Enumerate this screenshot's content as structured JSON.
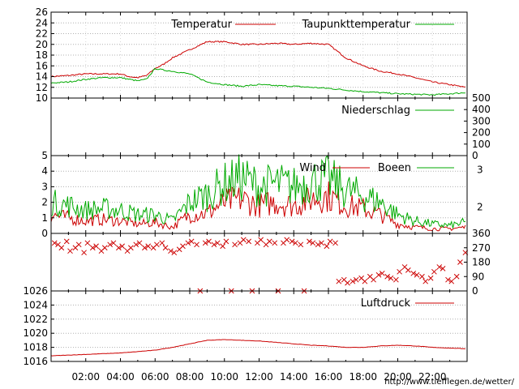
{
  "chart_data": [
    {
      "type": "line",
      "ylim": [
        10,
        26
      ],
      "yticks": [
        10,
        12,
        14,
        16,
        18,
        20,
        22,
        24,
        26
      ],
      "grid": true,
      "series": [
        {
          "name": "Temperatur",
          "color": "#cc0000",
          "x": [
            0,
            1,
            2,
            3,
            4,
            4.5,
            5,
            5.5,
            6,
            6.5,
            7,
            8,
            9,
            10,
            11,
            12,
            13,
            14,
            15,
            16,
            17,
            18,
            19,
            20,
            21,
            22,
            23,
            23.9
          ],
          "values": [
            14.0,
            14.2,
            14.5,
            14.5,
            14.5,
            14.0,
            13.8,
            14.2,
            15.5,
            16.3,
            17.5,
            19.0,
            20.5,
            20.5,
            20.0,
            20.0,
            20.2,
            20.0,
            20.2,
            20.0,
            17.5,
            16.0,
            15.0,
            14.5,
            13.8,
            13.0,
            12.5,
            12.0
          ]
        },
        {
          "name": "Taupunkttemperatur",
          "color": "#00aa00",
          "x": [
            0,
            1,
            2,
            3,
            4,
            4.5,
            5,
            5.5,
            6,
            6.5,
            7,
            8,
            9,
            10,
            11,
            12,
            13,
            14,
            15,
            16,
            17,
            18,
            19,
            20,
            21,
            22,
            23,
            23.9
          ],
          "values": [
            12.8,
            13.0,
            13.5,
            13.8,
            13.8,
            13.5,
            13.2,
            13.5,
            15.5,
            15.2,
            15.0,
            14.5,
            13.0,
            12.5,
            12.2,
            12.5,
            12.3,
            12.2,
            12.0,
            11.8,
            11.5,
            11.2,
            11.0,
            10.8,
            10.7,
            10.6,
            10.8,
            11.0
          ]
        }
      ]
    },
    {
      "type": "line",
      "ylim": [
        0,
        500
      ],
      "yticks": [
        0,
        100,
        200,
        300,
        400,
        500
      ],
      "series": [
        {
          "name": "Niederschlag",
          "color": "#00aa00",
          "x": [
            0,
            24
          ],
          "values": [
            0,
            0
          ]
        }
      ]
    },
    {
      "type": "line",
      "ylim": [
        0,
        5
      ],
      "yticks": [
        0,
        1,
        2,
        3,
        4,
        5
      ],
      "right_ticks": [
        "2",
        "3"
      ],
      "grid": true,
      "series": [
        {
          "name": "Wind",
          "color": "#cc0000",
          "x": [
            0,
            1,
            2,
            3,
            4,
            5,
            6,
            7,
            8,
            9,
            10,
            11,
            12,
            13,
            14,
            15,
            16,
            17,
            18,
            19,
            20,
            21,
            22,
            23,
            23.9
          ],
          "values": [
            1.2,
            1.0,
            0.8,
            0.9,
            0.8,
            0.6,
            0.7,
            0.4,
            1.2,
            1.3,
            2.0,
            2.2,
            1.8,
            2.0,
            1.8,
            2.2,
            2.4,
            1.8,
            1.6,
            1.2,
            0.6,
            0.4,
            0.3,
            0.3,
            0.4
          ]
        },
        {
          "name": "Boeen",
          "color": "#00aa00",
          "x": [
            0,
            1,
            2,
            3,
            4,
            5,
            6,
            7,
            8,
            9,
            10,
            11,
            12,
            13,
            14,
            15,
            16,
            17,
            18,
            19,
            20,
            21,
            22,
            23,
            23.9
          ],
          "values": [
            2.0,
            1.8,
            1.5,
            1.6,
            1.5,
            1.2,
            1.2,
            0.8,
            2.0,
            2.5,
            3.2,
            3.6,
            3.0,
            3.2,
            3.0,
            3.4,
            3.5,
            2.8,
            2.4,
            2.0,
            1.2,
            0.8,
            0.6,
            0.5,
            0.7
          ]
        }
      ]
    },
    {
      "type": "scatter",
      "ylim": [
        0,
        360
      ],
      "yticks": [
        0,
        90,
        180,
        270,
        360
      ],
      "series": [
        {
          "name": "",
          "color": "#cc0000",
          "x": [
            0.2,
            0.4,
            0.6,
            0.9,
            1.1,
            1.4,
            1.6,
            1.9,
            2.1,
            2.4,
            2.6,
            2.9,
            3.1,
            3.4,
            3.6,
            3.9,
            4.1,
            4.4,
            4.6,
            4.9,
            5.1,
            5.4,
            5.6,
            5.9,
            6.1,
            6.4,
            6.6,
            6.9,
            7.1,
            7.4,
            7.6,
            7.9,
            8.1,
            8.4,
            8.6,
            8.9,
            9.1,
            9.4,
            9.6,
            9.9,
            10.1,
            10.4,
            10.6,
            10.9,
            11.1,
            11.4,
            11.6,
            11.9,
            12.1,
            12.4,
            12.6,
            12.9,
            13.1,
            13.4,
            13.6,
            13.9,
            14.1,
            14.4,
            14.6,
            14.9,
            15.1,
            15.4,
            15.6,
            15.9,
            16.1,
            16.4,
            16.6,
            16.9,
            17.1,
            17.4,
            17.6,
            17.9,
            18.1,
            18.4,
            18.6,
            18.9,
            19.1,
            19.4,
            19.6,
            19.9,
            20.1,
            20.4,
            20.6,
            20.9,
            21.1,
            21.4,
            21.6,
            21.9,
            22.1,
            22.4,
            22.6,
            22.9,
            23.1,
            23.4,
            23.6,
            23.9
          ],
          "values": [
            300,
            290,
            270,
            310,
            250,
            270,
            290,
            240,
            300,
            270,
            280,
            250,
            270,
            290,
            300,
            270,
            280,
            250,
            270,
            290,
            300,
            270,
            280,
            270,
            290,
            300,
            270,
            250,
            240,
            260,
            280,
            300,
            310,
            290,
            0,
            300,
            310,
            290,
            300,
            280,
            310,
            0,
            290,
            300,
            320,
            310,
            0,
            300,
            320,
            290,
            310,
            300,
            0,
            300,
            320,
            310,
            300,
            290,
            0,
            310,
            300,
            290,
            300,
            280,
            310,
            300,
            60,
            70,
            50,
            60,
            70,
            80,
            60,
            90,
            70,
            100,
            110,
            90,
            80,
            70,
            120,
            150,
            130,
            110,
            100,
            90,
            60,
            80,
            120,
            150,
            140,
            70,
            60,
            90,
            180,
            240
          ]
        }
      ]
    },
    {
      "type": "line",
      "ylim": [
        1016,
        1026
      ],
      "yticks": [
        1016,
        1018,
        1020,
        1022,
        1024,
        1026
      ],
      "grid": true,
      "series": [
        {
          "name": "Luftdruck",
          "color": "#cc0000",
          "x": [
            0,
            2,
            4,
            6,
            7,
            8,
            9,
            10,
            11,
            12,
            13,
            14,
            15,
            16,
            17,
            18,
            19,
            20,
            21,
            22,
            23,
            23.9
          ],
          "values": [
            1016.8,
            1017.0,
            1017.2,
            1017.6,
            1018.0,
            1018.5,
            1019.0,
            1019.1,
            1019.0,
            1018.9,
            1018.7,
            1018.5,
            1018.3,
            1018.2,
            1018.0,
            1018.0,
            1018.2,
            1018.3,
            1018.2,
            1018.0,
            1017.9,
            1017.8
          ]
        }
      ]
    }
  ],
  "x_axis": {
    "min": 0,
    "max": 24,
    "major": [
      2,
      4,
      6,
      8,
      10,
      12,
      14,
      16,
      18,
      20,
      22
    ],
    "tick_labels": [
      "02:00",
      "04:00",
      "06:00",
      "08:00",
      "10:00",
      "12:00",
      "14:00",
      "16:00",
      "18:00",
      "20:00",
      "22:00"
    ]
  },
  "footer_url": "http://www.tiefflegen.de/wetter/"
}
